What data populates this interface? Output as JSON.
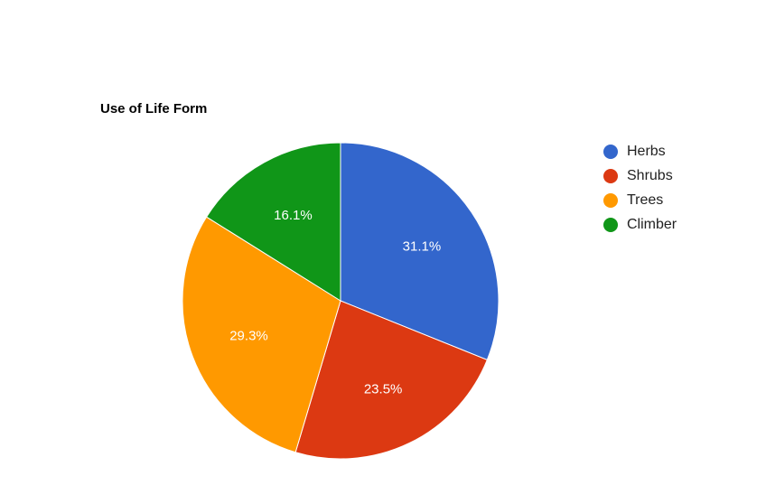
{
  "chart_data": {
    "type": "pie",
    "title": "Use of Life Form",
    "legend_position": "right",
    "slices": [
      {
        "name": "Herbs",
        "value": 31.1,
        "label": "31.1%",
        "color": "#3366cc"
      },
      {
        "name": "Shrubs",
        "value": 23.5,
        "label": "23.5%",
        "color": "#dc3912"
      },
      {
        "name": "Trees",
        "value": 29.3,
        "label": "29.3%",
        "color": "#ff9900"
      },
      {
        "name": "Climber",
        "value": 16.1,
        "label": "16.1%",
        "color": "#109618"
      }
    ]
  }
}
